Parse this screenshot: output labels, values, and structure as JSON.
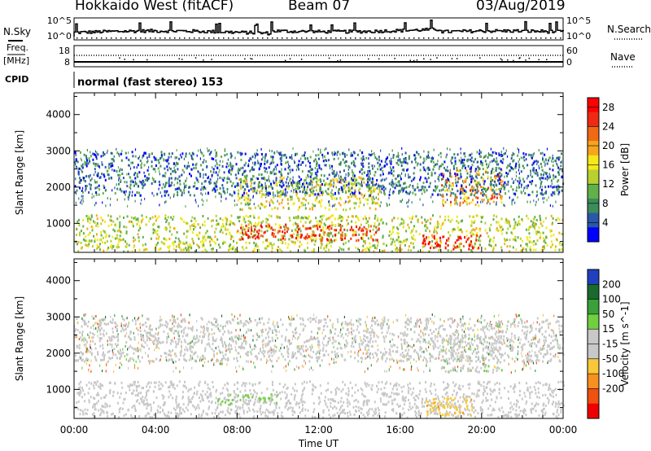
{
  "header": {
    "title": "Hokkaido West (fitACF)",
    "beam": "Beam 07",
    "date": "03/Aug/2019"
  },
  "top_panel": {
    "nsky_label": "N.Sky",
    "nsky_ticks": [
      "10^5",
      "10^0"
    ],
    "nsearch_label": "N.Search",
    "nsearch_ticks": [
      "10^5",
      "10^0"
    ],
    "freq_label_1": "Freq.",
    "freq_label_2": "[MHz]",
    "freq_ticks": [
      "18",
      "8"
    ],
    "nave_label": "Nave",
    "nave_ticks": [
      "60",
      "0"
    ],
    "cpid_label": "CPID",
    "cpid_value": "normal (fast stereo) 153"
  },
  "colors": {
    "power_scale": [
      "#0000ff",
      "#2a58a8",
      "#3d8c5a",
      "#62b04a",
      "#b8d030",
      "#f4e81a",
      "#f7a51c",
      "#f06a14",
      "#ee2a14",
      "#ff0000"
    ],
    "velocity_scale": [
      "#2040c0",
      "#1a6a30",
      "#3aa03a",
      "#70d040",
      "#c8c8c8",
      "#c8c8c8",
      "#f8c838",
      "#f89020",
      "#f05010",
      "#ee0000"
    ]
  },
  "chart_data": [
    {
      "type": "heatmap",
      "title": "",
      "xlabel": "Time UT",
      "ylabel": "Slant Range [km]",
      "x_tick_labels": [
        "00:00",
        "04:00",
        "08:00",
        "12:00",
        "16:00",
        "20:00",
        "00:00"
      ],
      "y_tick_labels": [
        "1000",
        "2000",
        "3000",
        "4000"
      ],
      "xlim": [
        "00:00",
        "24:00"
      ],
      "ylim": [
        200,
        4600
      ],
      "colorbar": {
        "label": "Power [dB]",
        "ticks": [
          "4",
          "8",
          "12",
          "16",
          "20",
          "24",
          "28"
        ],
        "range": [
          0,
          30
        ]
      },
      "features": [
        {
          "name": "near-range band",
          "time_hours": [
            0,
            24
          ],
          "range_km": [
            250,
            1250
          ],
          "dominant_value": 14
        },
        {
          "name": "strong E/F echoes",
          "time_hours": [
            8,
            15
          ],
          "range_km": [
            550,
            1000
          ],
          "dominant_value": 26
        },
        {
          "name": "strong late echoes",
          "time_hours": [
            17,
            20
          ],
          "range_km": [
            300,
            700
          ],
          "dominant_value": 28
        },
        {
          "name": "mid-range arcs",
          "time_hours": [
            8,
            15
          ],
          "range_km": [
            1400,
            2300
          ],
          "dominant_value": 16
        },
        {
          "name": "dusk arc",
          "time_hours": [
            18,
            21
          ],
          "range_km": [
            1500,
            2500
          ],
          "dominant_value": 20
        },
        {
          "name": "far-range scatter",
          "time_hours": [
            0,
            24
          ],
          "range_km": [
            1800,
            3000
          ],
          "dominant_value": 6
        }
      ]
    },
    {
      "type": "heatmap",
      "title": "",
      "xlabel": "Time UT",
      "ylabel": "Slant Range [km]",
      "x_tick_labels": [
        "00:00",
        "04:00",
        "08:00",
        "12:00",
        "16:00",
        "20:00",
        "00:00"
      ],
      "y_tick_labels": [
        "1000",
        "2000",
        "3000",
        "4000"
      ],
      "xlim": [
        "00:00",
        "24:00"
      ],
      "ylim": [
        200,
        4600
      ],
      "colorbar": {
        "label": "Velocity [m s^-1]",
        "ticks": [
          "200",
          "100",
          "50",
          "15",
          "-15",
          "-50",
          "-100",
          "-200"
        ],
        "range": [
          -250,
          250
        ]
      },
      "features": [
        {
          "name": "near-range ground scatter",
          "time_hours": [
            0,
            24
          ],
          "range_km": [
            250,
            1250
          ],
          "dominant_value": 0
        },
        {
          "name": "positive velocity patch",
          "time_hours": [
            7,
            10
          ],
          "range_km": [
            600,
            900
          ],
          "dominant_value": 60
        },
        {
          "name": "negative velocity patch",
          "time_hours": [
            17,
            19.5
          ],
          "range_km": [
            300,
            800
          ],
          "dominant_value": -80
        },
        {
          "name": "dusk arc",
          "time_hours": [
            18,
            21
          ],
          "range_km": [
            1500,
            2500
          ],
          "dominant_value": 30
        },
        {
          "name": "far-range scatter",
          "time_hours": [
            0,
            24
          ],
          "range_km": [
            1800,
            3000
          ],
          "dominant_value": 0
        }
      ]
    }
  ]
}
